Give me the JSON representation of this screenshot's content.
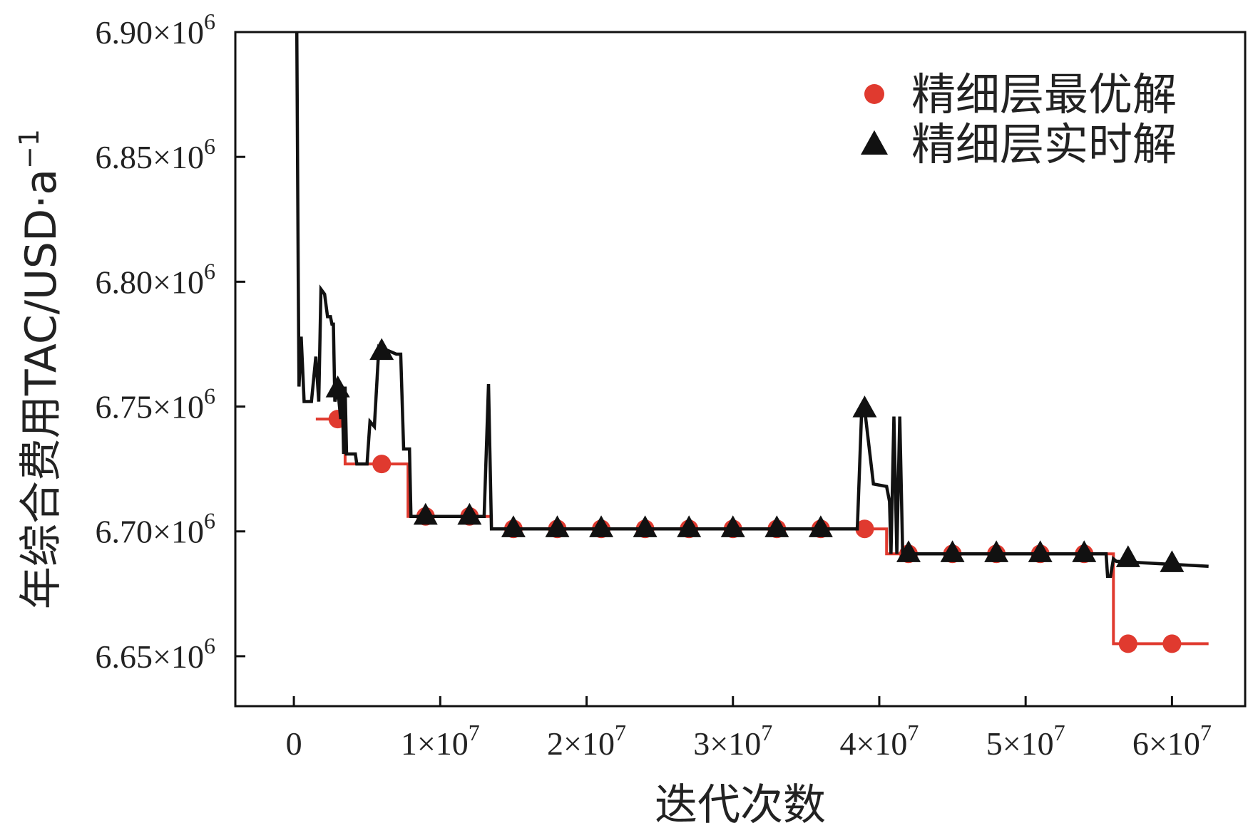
{
  "chart_data": {
    "type": "line",
    "xlabel": "迭代次数",
    "ylabel": "年综合费用TAC/USD·a",
    "ylabel_sup": "−1",
    "xlim": [
      -4000000,
      65000000
    ],
    "ylim": [
      6630000,
      6900000
    ],
    "x_ticks": [
      {
        "value": 0,
        "base": "0",
        "exp": ""
      },
      {
        "value": 10000000,
        "base": "1×10",
        "exp": "7"
      },
      {
        "value": 20000000,
        "base": "2×10",
        "exp": "7"
      },
      {
        "value": 30000000,
        "base": "3×10",
        "exp": "7"
      },
      {
        "value": 40000000,
        "base": "4×10",
        "exp": "7"
      },
      {
        "value": 50000000,
        "base": "5×10",
        "exp": "7"
      },
      {
        "value": 60000000,
        "base": "6×10",
        "exp": "7"
      }
    ],
    "y_ticks": [
      {
        "value": 6650000,
        "base": "6.65×10",
        "exp": "6"
      },
      {
        "value": 6700000,
        "base": "6.70×10",
        "exp": "6"
      },
      {
        "value": 6750000,
        "base": "6.75×10",
        "exp": "6"
      },
      {
        "value": 6800000,
        "base": "6.80×10",
        "exp": "6"
      },
      {
        "value": 6850000,
        "base": "6.85×10",
        "exp": "6"
      },
      {
        "value": 6900000,
        "base": "6.90×10",
        "exp": "6"
      }
    ],
    "legend_position": "top-right",
    "series": [
      {
        "name": "精细层最优解",
        "color": "#e03a2f",
        "marker": "circle",
        "step_line": [
          [
            1500000,
            6745000
          ],
          [
            3500000,
            6745000
          ],
          [
            3500000,
            6727000
          ],
          [
            7800000,
            6727000
          ],
          [
            7800000,
            6706000
          ],
          [
            13500000,
            6706000
          ],
          [
            13500000,
            6701000
          ],
          [
            40500000,
            6701000
          ],
          [
            40500000,
            6691000
          ],
          [
            56000000,
            6691000
          ],
          [
            56000000,
            6655000
          ],
          [
            62500000,
            6655000
          ]
        ],
        "markers": [
          [
            3000000,
            6745000
          ],
          [
            6000000,
            6727000
          ],
          [
            9000000,
            6706000
          ],
          [
            12000000,
            6706000
          ],
          [
            15000000,
            6701000
          ],
          [
            18000000,
            6701000
          ],
          [
            21000000,
            6701000
          ],
          [
            24000000,
            6701000
          ],
          [
            27000000,
            6701000
          ],
          [
            30000000,
            6701000
          ],
          [
            33000000,
            6701000
          ],
          [
            36000000,
            6701000
          ],
          [
            39000000,
            6701000
          ],
          [
            42000000,
            6691000
          ],
          [
            45000000,
            6691000
          ],
          [
            48000000,
            6691000
          ],
          [
            51000000,
            6691000
          ],
          [
            54000000,
            6691000
          ],
          [
            57000000,
            6655000
          ],
          [
            60000000,
            6655000
          ]
        ]
      },
      {
        "name": "精细层实时解",
        "color": "#111111",
        "marker": "triangle",
        "line": [
          [
            200000,
            6900000
          ],
          [
            250000,
            6850000
          ],
          [
            300000,
            6800000
          ],
          [
            350000,
            6758000
          ],
          [
            500000,
            6778000
          ],
          [
            700000,
            6752000
          ],
          [
            1200000,
            6752000
          ],
          [
            1500000,
            6770000
          ],
          [
            1700000,
            6752000
          ],
          [
            1850000,
            6797000
          ],
          [
            2100000,
            6795000
          ],
          [
            2300000,
            6786000
          ],
          [
            2500000,
            6786000
          ],
          [
            2600000,
            6783000
          ],
          [
            2700000,
            6783000
          ],
          [
            2800000,
            6752000
          ],
          [
            3000000,
            6757000
          ],
          [
            3200000,
            6745000
          ],
          [
            3300000,
            6757000
          ],
          [
            3400000,
            6731000
          ],
          [
            3500000,
            6758000
          ],
          [
            3600000,
            6731000
          ],
          [
            4200000,
            6731000
          ],
          [
            4300000,
            6727000
          ],
          [
            5000000,
            6727000
          ],
          [
            5200000,
            6744000
          ],
          [
            5500000,
            6742000
          ],
          [
            5800000,
            6773000
          ],
          [
            6000000,
            6771000
          ],
          [
            6200000,
            6773000
          ],
          [
            7000000,
            6771000
          ],
          [
            7300000,
            6771000
          ],
          [
            7500000,
            6733000
          ],
          [
            7700000,
            6733000
          ],
          [
            7900000,
            6733000
          ],
          [
            8000000,
            6706000
          ],
          [
            12500000,
            6706000
          ],
          [
            13000000,
            6706000
          ],
          [
            13300000,
            6759000
          ],
          [
            13500000,
            6701000
          ],
          [
            38000000,
            6701000
          ],
          [
            38500000,
            6701000
          ],
          [
            38800000,
            6749000
          ],
          [
            39000000,
            6749000
          ],
          [
            39600000,
            6719000
          ],
          [
            40500000,
            6718000
          ],
          [
            40700000,
            6712000
          ],
          [
            40800000,
            6691000
          ],
          [
            41000000,
            6746000
          ],
          [
            41200000,
            6691000
          ],
          [
            41400000,
            6746000
          ],
          [
            41600000,
            6691000
          ],
          [
            55000000,
            6691000
          ],
          [
            55500000,
            6691000
          ],
          [
            55600000,
            6682000
          ],
          [
            55800000,
            6682000
          ],
          [
            56000000,
            6689000
          ],
          [
            56200000,
            6688000
          ],
          [
            62500000,
            6686000
          ]
        ],
        "markers": [
          [
            3000000,
            6757000
          ],
          [
            6000000,
            6772000
          ],
          [
            9000000,
            6706000
          ],
          [
            12000000,
            6706000
          ],
          [
            15000000,
            6701000
          ],
          [
            18000000,
            6701000
          ],
          [
            21000000,
            6701000
          ],
          [
            24000000,
            6701000
          ],
          [
            27000000,
            6701000
          ],
          [
            30000000,
            6701000
          ],
          [
            33000000,
            6701000
          ],
          [
            36000000,
            6701000
          ],
          [
            39000000,
            6749000
          ],
          [
            42000000,
            6691000
          ],
          [
            45000000,
            6691000
          ],
          [
            48000000,
            6691000
          ],
          [
            51000000,
            6691000
          ],
          [
            54000000,
            6691000
          ],
          [
            57000000,
            6689000
          ],
          [
            60000000,
            6687000
          ]
        ]
      }
    ]
  }
}
